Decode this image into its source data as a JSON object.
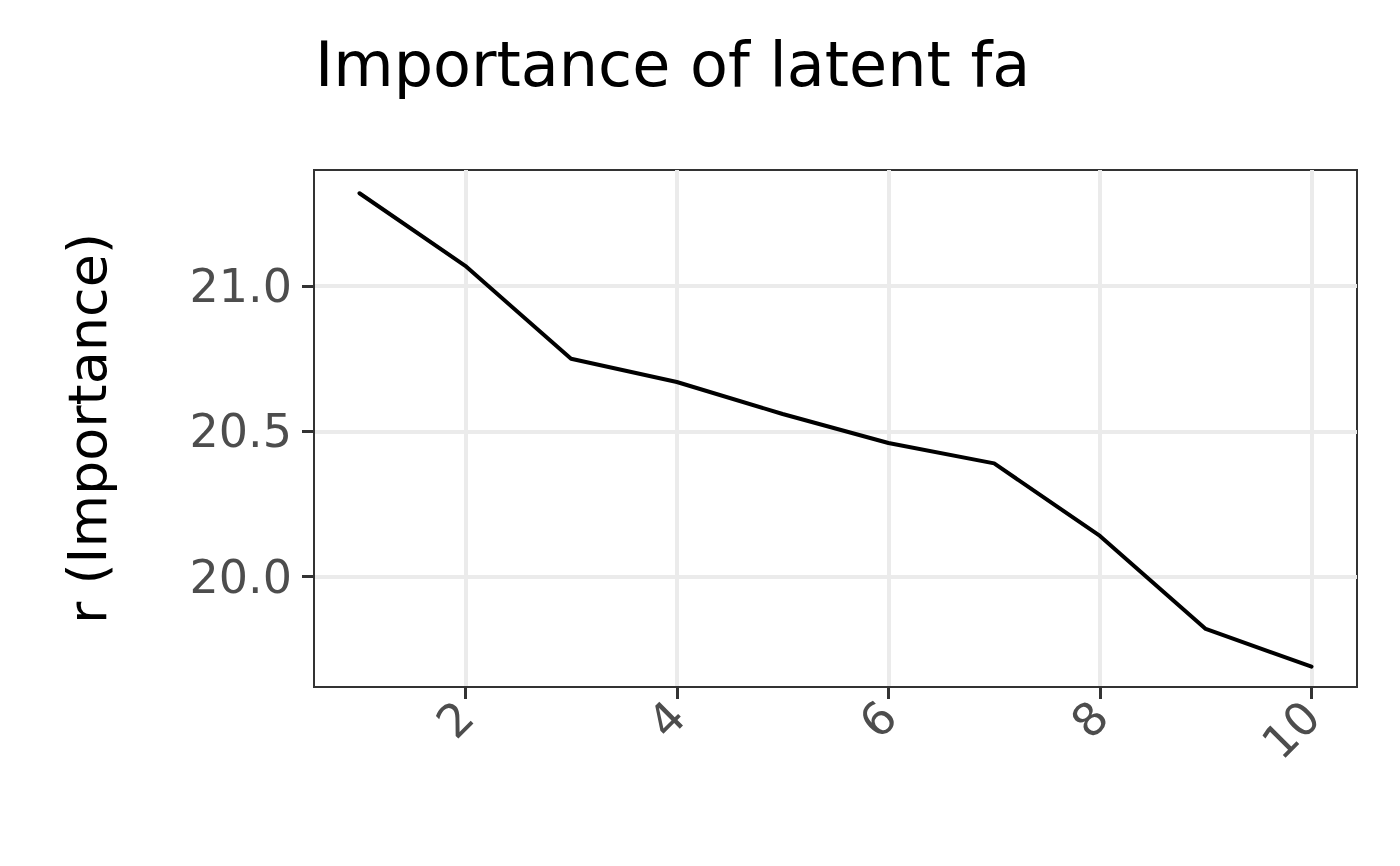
{
  "chart_data": {
    "type": "line",
    "title": "Importance of latent fa",
    "ylabel": "r (Importance)",
    "x": [
      1,
      2,
      3,
      4,
      5,
      6,
      7,
      8,
      9,
      10
    ],
    "series": [
      {
        "color": "#000000",
        "values": [
          21.32,
          21.07,
          20.75,
          20.67,
          20.56,
          20.46,
          20.39,
          20.14,
          19.82,
          19.69
        ]
      }
    ],
    "xlim": [
      0.57,
      10.43
    ],
    "xticks": [
      2,
      4,
      6,
      8,
      10
    ],
    "ylim": [
      19.62,
      21.4
    ],
    "yticks": [
      {
        "value": 20,
        "label": "20.0"
      },
      {
        "value": 20.5,
        "label": "20.5"
      },
      {
        "value": 21.0,
        "label": "21.0"
      }
    ],
    "grid": true,
    "marker": "none",
    "line_style": "solid"
  }
}
